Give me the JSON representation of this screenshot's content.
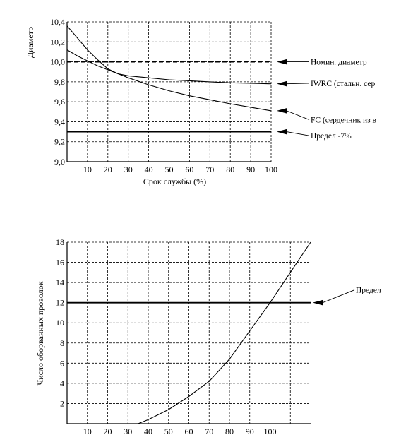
{
  "chart_data": [
    {
      "type": "line",
      "ylabel": "Диаметр",
      "xlabel": "Срок службы (%)",
      "xlim": [
        0,
        100
      ],
      "ylim": [
        9.0,
        10.4
      ],
      "x_ticks": [
        10,
        20,
        30,
        40,
        50,
        60,
        70,
        80,
        90,
        100
      ],
      "y_ticks": [
        "9,0",
        "9,2",
        "9,4",
        "9,6",
        "9,8",
        "10,0",
        "10,2",
        "10,4"
      ],
      "y_tick_values": [
        9.0,
        9.2,
        9.4,
        9.6,
        9.8,
        10.0,
        10.2,
        10.4
      ],
      "grid": true,
      "series": [
        {
          "name": "Номин. диаметр",
          "style": "dashed",
          "x": [
            0,
            100
          ],
          "values": [
            10.0,
            10.0
          ]
        },
        {
          "name": "IWRC (стальн. сер",
          "style": "solid",
          "x": [
            0,
            5,
            10,
            15,
            20,
            25,
            30,
            40,
            50,
            60,
            70,
            80,
            90,
            100
          ],
          "values": [
            10.36,
            10.24,
            10.12,
            10.02,
            9.93,
            9.88,
            9.86,
            9.84,
            9.82,
            9.81,
            9.8,
            9.79,
            9.785,
            9.78
          ]
        },
        {
          "name": "FC (сердечник из в",
          "style": "solid",
          "x": [
            0,
            5,
            10,
            15,
            20,
            25,
            30,
            40,
            50,
            60,
            70,
            80,
            90,
            100
          ],
          "values": [
            10.12,
            10.06,
            10.01,
            9.96,
            9.92,
            9.88,
            9.84,
            9.77,
            9.71,
            9.66,
            9.62,
            9.58,
            9.545,
            9.51
          ]
        },
        {
          "name": "Предел -7%",
          "style": "thick",
          "x": [
            0,
            100
          ],
          "values": [
            9.3,
            9.3
          ]
        }
      ]
    },
    {
      "type": "line",
      "ylabel": "Число оборванных проволок",
      "xlabel": "",
      "xlim": [
        0,
        120
      ],
      "ylim": [
        0,
        18
      ],
      "x_ticks": [
        10,
        20,
        30,
        40,
        50,
        60,
        70,
        80,
        90,
        100
      ],
      "y_ticks": [
        "2",
        "4",
        "6",
        "8",
        "10",
        "12",
        "14",
        "16",
        "18"
      ],
      "y_tick_values": [
        2,
        4,
        6,
        8,
        10,
        12,
        14,
        16,
        18
      ],
      "grid": true,
      "series": [
        {
          "name": "",
          "style": "solid",
          "x": [
            35,
            40,
            50,
            60,
            70,
            80,
            90,
            100,
            110,
            120
          ],
          "values": [
            0,
            0.4,
            1.4,
            2.7,
            4.2,
            6.4,
            9.2,
            12.0,
            15.0,
            18.0
          ]
        },
        {
          "name": "Предел",
          "style": "thick",
          "x": [
            0,
            120
          ],
          "values": [
            12,
            12
          ]
        }
      ]
    }
  ]
}
